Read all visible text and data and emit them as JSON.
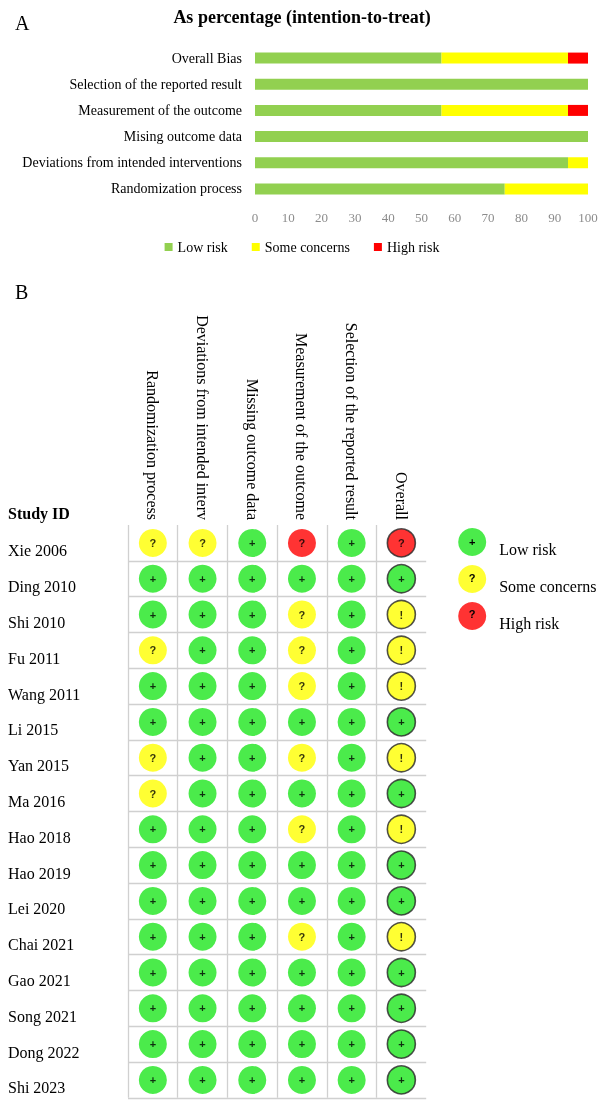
{
  "chart_data": [
    {
      "type": "bar",
      "orientation": "horizontal",
      "stacked": true,
      "title": "As percentage (intention-to-treat)",
      "annotations": [
        "A"
      ],
      "categories": [
        "Overall Bias",
        "Selection of the reported result",
        "Measurement of the outcome",
        "Mising outcome data",
        "Deviations from intended interventions",
        "Randomization process"
      ],
      "series": [
        {
          "name": "Low risk",
          "color": "#92d050",
          "values": [
            56,
            100,
            56,
            100,
            94,
            75
          ]
        },
        {
          "name": "Some concerns",
          "color": "#ffff00",
          "values": [
            38,
            0,
            38,
            0,
            6,
            25
          ]
        },
        {
          "name": "High risk",
          "color": "#ff0000",
          "values": [
            6,
            0,
            6,
            0,
            0,
            0
          ]
        }
      ],
      "xlim": [
        0,
        100
      ],
      "xticks": [
        0,
        10,
        20,
        30,
        40,
        50,
        60,
        70,
        80,
        90,
        100
      ],
      "legend": "bottom"
    },
    {
      "type": "heatmap",
      "annotations": [
        "B"
      ],
      "ylabel": "Study ID",
      "categories": [
        "Randomization process",
        "Deviations from intended interv",
        "Missing outcome data",
        "Measurement of the outcome",
        "Selection of the reported result",
        "Overall"
      ],
      "y_categories": [
        "Xie 2006",
        "Ding 2010",
        "Shi 2010",
        "Fu 2011",
        "Wang 2011",
        "Li 2015",
        "Yan 2015",
        "Ma 2016",
        "Hao 2018",
        "Hao 2019",
        "Lei 2020",
        "Chai 2021",
        "Gao 2021",
        "Song 2021",
        "Dong 2022",
        "Shi 2023"
      ],
      "series": [
        {
          "name": "Low risk",
          "color": "#1ee61e",
          "values": [
            null,
            null,
            null,
            null,
            null,
            null
          ]
        },
        {
          "name": "Some concerns",
          "color": "#ffff00",
          "values": [
            null,
            null,
            null,
            null,
            null,
            null
          ]
        },
        {
          "name": "High risk",
          "color": "#ff0000",
          "values": [
            null,
            null,
            null,
            null,
            null,
            null
          ]
        }
      ],
      "cells": [
        [
          "?",
          "?",
          "+",
          "?",
          "+",
          "?"
        ],
        [
          "+",
          "+",
          "+",
          "+",
          "+",
          "+"
        ],
        [
          "+",
          "+",
          "+",
          "?",
          "+",
          "!"
        ],
        [
          "?",
          "+",
          "+",
          "?",
          "+",
          "!"
        ],
        [
          "+",
          "+",
          "+",
          "?",
          "+",
          "!"
        ],
        [
          "+",
          "+",
          "+",
          "+",
          "+",
          "+"
        ],
        [
          "?",
          "+",
          "+",
          "?",
          "+",
          "!"
        ],
        [
          "?",
          "+",
          "+",
          "+",
          "+",
          "+"
        ],
        [
          "+",
          "+",
          "+",
          "?",
          "+",
          "!"
        ],
        [
          "+",
          "+",
          "+",
          "+",
          "+",
          "+"
        ],
        [
          "+",
          "+",
          "+",
          "+",
          "+",
          "+"
        ],
        [
          "+",
          "+",
          "+",
          "?",
          "+",
          "!"
        ],
        [
          "+",
          "+",
          "+",
          "+",
          "+",
          "+"
        ],
        [
          "+",
          "+",
          "+",
          "+",
          "+",
          "+"
        ],
        [
          "+",
          "+",
          "+",
          "+",
          "+",
          "+"
        ],
        [
          "+",
          "+",
          "+",
          "+",
          "+",
          "+"
        ]
      ],
      "colors": [
        [
          "#ffff00",
          "#ffff00",
          "#1ee61e",
          "#ff0000",
          "#1ee61e",
          "#ff0000"
        ],
        [
          "#1ee61e",
          "#1ee61e",
          "#1ee61e",
          "#1ee61e",
          "#1ee61e",
          "#1ee61e"
        ],
        [
          "#1ee61e",
          "#1ee61e",
          "#1ee61e",
          "#ffff00",
          "#1ee61e",
          "#ffff00"
        ],
        [
          "#ffff00",
          "#1ee61e",
          "#1ee61e",
          "#ffff00",
          "#1ee61e",
          "#ffff00"
        ],
        [
          "#1ee61e",
          "#1ee61e",
          "#1ee61e",
          "#ffff00",
          "#1ee61e",
          "#ffff00"
        ],
        [
          "#1ee61e",
          "#1ee61e",
          "#1ee61e",
          "#1ee61e",
          "#1ee61e",
          "#1ee61e"
        ],
        [
          "#ffff00",
          "#1ee61e",
          "#1ee61e",
          "#ffff00",
          "#1ee61e",
          "#ffff00"
        ],
        [
          "#ffff00",
          "#1ee61e",
          "#1ee61e",
          "#1ee61e",
          "#1ee61e",
          "#1ee61e"
        ],
        [
          "#1ee61e",
          "#1ee61e",
          "#1ee61e",
          "#ffff00",
          "#1ee61e",
          "#ffff00"
        ],
        [
          "#1ee61e",
          "#1ee61e",
          "#1ee61e",
          "#1ee61e",
          "#1ee61e",
          "#1ee61e"
        ],
        [
          "#1ee61e",
          "#1ee61e",
          "#1ee61e",
          "#1ee61e",
          "#1ee61e",
          "#1ee61e"
        ],
        [
          "#1ee61e",
          "#1ee61e",
          "#1ee61e",
          "#ffff00",
          "#1ee61e",
          "#ffff00"
        ],
        [
          "#1ee61e",
          "#1ee61e",
          "#1ee61e",
          "#1ee61e",
          "#1ee61e",
          "#1ee61e"
        ],
        [
          "#1ee61e",
          "#1ee61e",
          "#1ee61e",
          "#1ee61e",
          "#1ee61e",
          "#1ee61e"
        ],
        [
          "#1ee61e",
          "#1ee61e",
          "#1ee61e",
          "#1ee61e",
          "#1ee61e",
          "#1ee61e"
        ],
        [
          "#1ee61e",
          "#1ee61e",
          "#1ee61e",
          "#1ee61e",
          "#1ee61e",
          "#1ee61e"
        ]
      ],
      "grid": true,
      "legend": "right"
    }
  ]
}
